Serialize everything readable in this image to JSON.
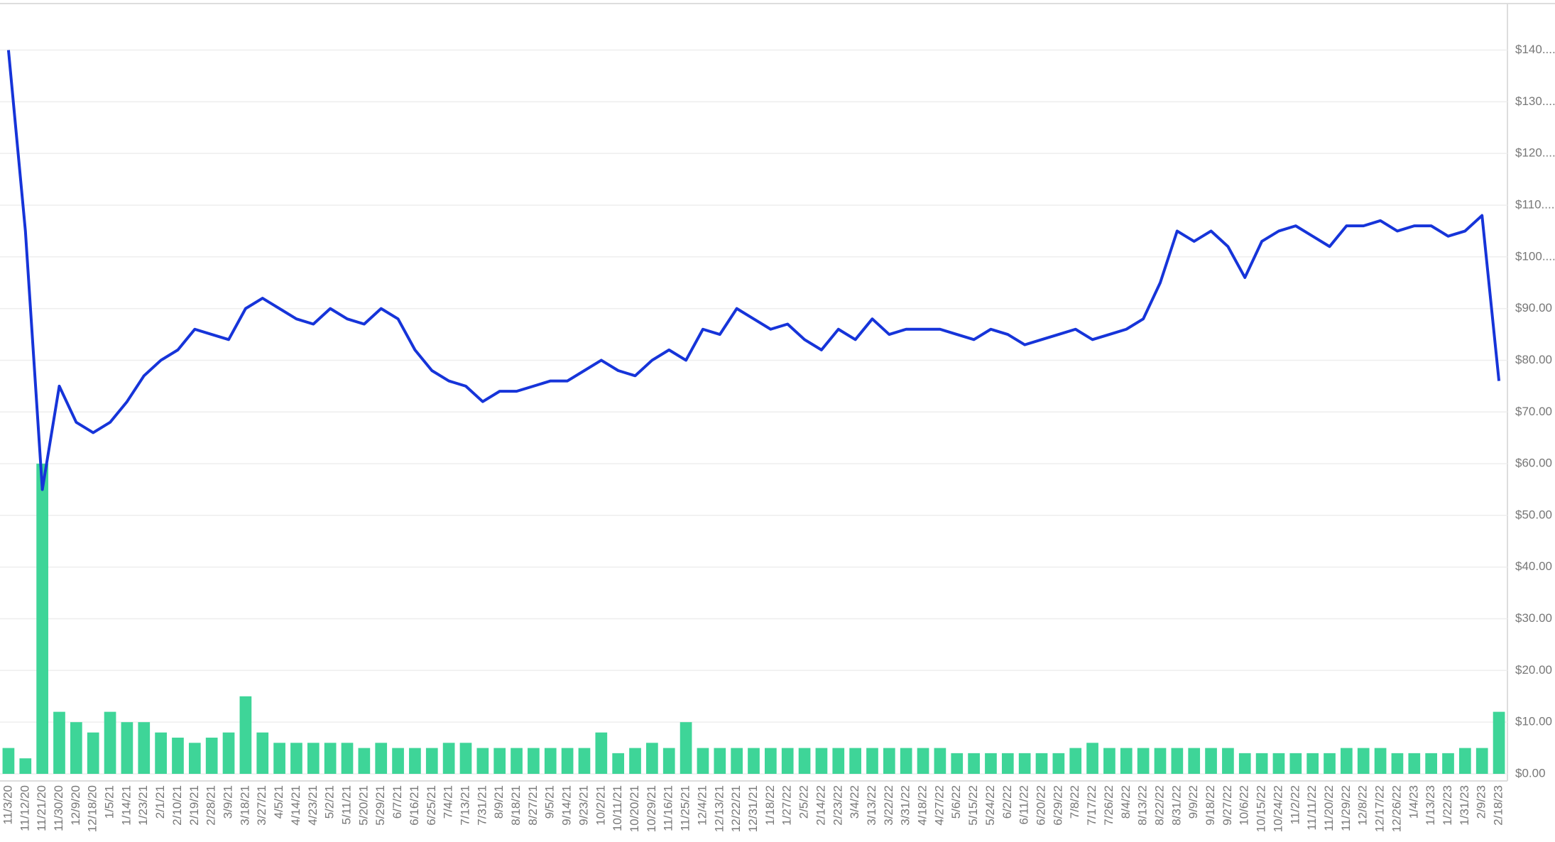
{
  "chart_data": {
    "type": "bar-line",
    "categories": [
      "11/3/20",
      "11/12/20",
      "11/21/20",
      "11/30/20",
      "12/9/20",
      "12/18/20",
      "1/5/21",
      "1/14/21",
      "1/23/21",
      "2/1/21",
      "2/10/21",
      "2/19/21",
      "2/28/21",
      "3/9/21",
      "3/18/21",
      "3/27/21",
      "4/5/21",
      "4/14/21",
      "4/23/21",
      "5/2/21",
      "5/11/21",
      "5/20/21",
      "5/29/21",
      "6/7/21",
      "6/16/21",
      "6/25/21",
      "7/4/21",
      "7/13/21",
      "7/31/21",
      "8/9/21",
      "8/18/21",
      "8/27/21",
      "9/5/21",
      "9/14/21",
      "9/23/21",
      "10/2/21",
      "10/11/21",
      "10/20/21",
      "10/29/21",
      "11/16/21",
      "11/25/21",
      "12/4/21",
      "12/13/21",
      "12/22/21",
      "12/31/21",
      "1/18/22",
      "1/27/22",
      "2/5/22",
      "2/14/22",
      "2/23/22",
      "3/4/22",
      "3/13/22",
      "3/22/22",
      "3/31/22",
      "4/18/22",
      "4/27/22",
      "5/6/22",
      "5/15/22",
      "5/24/22",
      "6/2/22",
      "6/11/22",
      "6/20/22",
      "6/29/22",
      "7/8/22",
      "7/17/22",
      "7/26/22",
      "8/4/22",
      "8/13/22",
      "8/22/22",
      "8/31/22",
      "9/9/22",
      "9/18/22",
      "9/27/22",
      "10/6/22",
      "10/15/22",
      "10/24/22",
      "11/2/22",
      "11/11/22",
      "11/20/22",
      "11/29/22",
      "12/8/22",
      "12/17/22",
      "12/26/22",
      "1/4/23",
      "1/13/23",
      "1/22/23",
      "1/31/23",
      "2/9/23",
      "2/18/23"
    ],
    "series": [
      {
        "type": "bar",
        "color": "#3ed598",
        "values": [
          5,
          3,
          60,
          12,
          10,
          8,
          12,
          10,
          10,
          8,
          7,
          6,
          7,
          8,
          15,
          8,
          6,
          6,
          6,
          6,
          6,
          5,
          6,
          5,
          5,
          5,
          6,
          6,
          5,
          5,
          5,
          5,
          5,
          5,
          5,
          8,
          4,
          5,
          6,
          5,
          10,
          5,
          5,
          5,
          5,
          5,
          5,
          5,
          5,
          5,
          5,
          5,
          5,
          5,
          5,
          5,
          4,
          4,
          4,
          4,
          4,
          4,
          4,
          5,
          6,
          5,
          5,
          5,
          5,
          5,
          5,
          5,
          5,
          4,
          4,
          4,
          4,
          4,
          4,
          5,
          5,
          5,
          4,
          4,
          4,
          4,
          5,
          5,
          12
        ]
      },
      {
        "type": "line",
        "color": "#1634d9",
        "values": [
          140,
          105,
          55,
          75,
          68,
          66,
          68,
          72,
          77,
          80,
          82,
          86,
          85,
          84,
          90,
          92,
          90,
          88,
          87,
          90,
          88,
          87,
          90,
          88,
          82,
          78,
          76,
          75,
          72,
          74,
          74,
          75,
          76,
          76,
          78,
          80,
          78,
          77,
          80,
          82,
          80,
          86,
          85,
          90,
          88,
          86,
          87,
          84,
          82,
          86,
          84,
          88,
          85,
          86,
          86,
          86,
          85,
          84,
          86,
          85,
          83,
          84,
          85,
          86,
          84,
          85,
          86,
          88,
          95,
          105,
          103,
          105,
          102,
          96,
          103,
          105,
          106,
          104,
          102,
          106,
          106,
          107,
          105,
          106,
          106,
          104,
          105,
          108,
          76
        ]
      }
    ],
    "ylim": [
      0,
      149
    ],
    "yticks": [
      {
        "value": 0,
        "label": "$0.00"
      },
      {
        "value": 10,
        "label": "$10.00"
      },
      {
        "value": 20,
        "label": "$20.00"
      },
      {
        "value": 30,
        "label": "$30.00"
      },
      {
        "value": 40,
        "label": "$40.00"
      },
      {
        "value": 50,
        "label": "$50.00"
      },
      {
        "value": 60,
        "label": "$60.00"
      },
      {
        "value": 70,
        "label": "$70.00"
      },
      {
        "value": 80,
        "label": "$80.00"
      },
      {
        "value": 90,
        "label": "$90.00"
      },
      {
        "value": 100,
        "label": "$100...."
      },
      {
        "value": 110,
        "label": "$110...."
      },
      {
        "value": 120,
        "label": "$120...."
      },
      {
        "value": 130,
        "label": "$130...."
      },
      {
        "value": 140,
        "label": "$140...."
      }
    ],
    "grid": true
  }
}
